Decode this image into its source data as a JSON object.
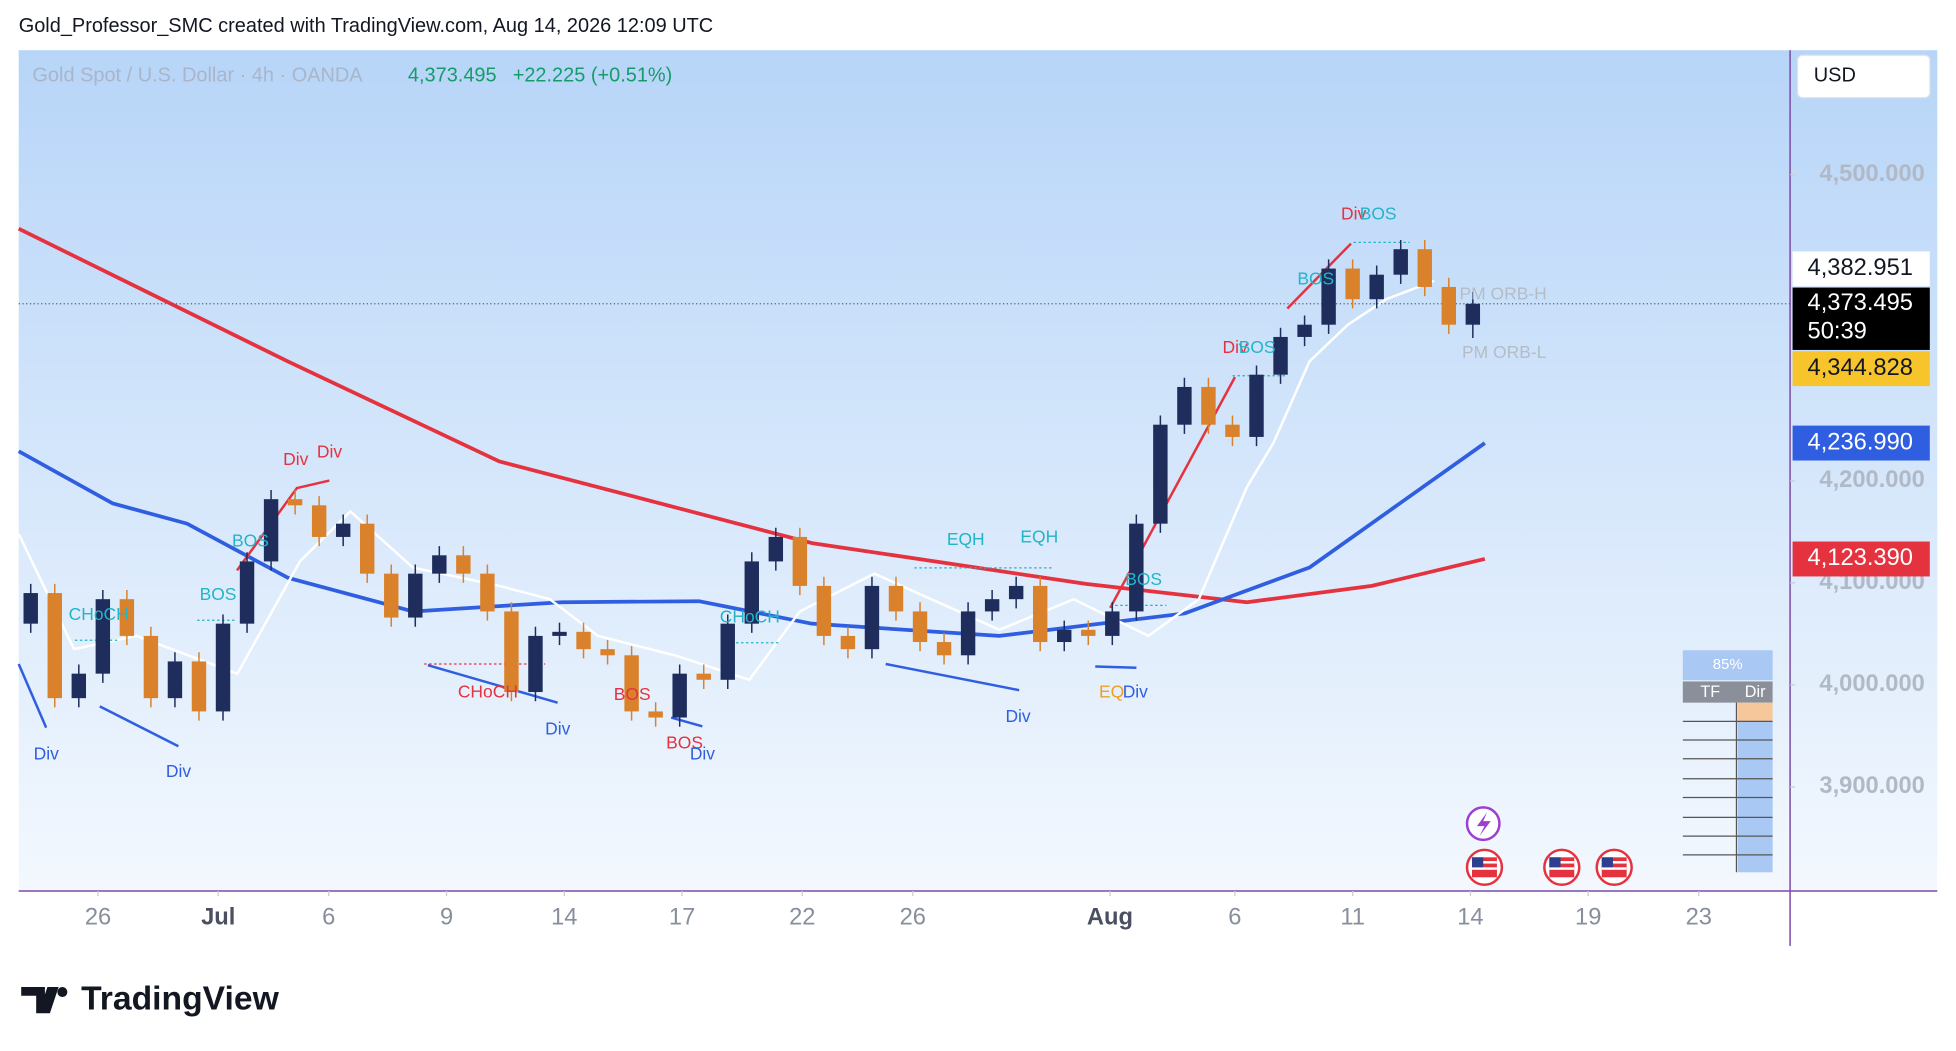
{
  "header": {
    "attribution": "Gold_Professor_SMC created with TradingView.com, Aug 14, 2026 12:09 UTC",
    "logo": "TradingView"
  },
  "chart_data": {
    "type": "candlestick",
    "title": "Gold Spot / U.S. Dollar · 4h · OANDA",
    "last_price": "4,373.495",
    "change": "+22.225 (+0.51%)",
    "currency": "USD",
    "up_color": "#1f2d5c",
    "down_color": "#d9822b",
    "open": [
      4060,
      4090,
      3987,
      4011,
      4084,
      4048,
      3987,
      4023,
      3974,
      4060,
      4121,
      4182,
      4176,
      4145,
      4158,
      4109,
      4066,
      4109,
      4127,
      4109,
      4072,
      3993,
      4048,
      4052,
      4035,
      4029,
      3974,
      3968,
      4011,
      4005,
      4060,
      4121,
      4145,
      4097,
      4048,
      4035,
      4097,
      4072,
      4042,
      4029,
      4072,
      4084,
      4097,
      4042,
      4054,
      4048,
      4072,
      4158,
      4255,
      4292,
      4255,
      4243,
      4304,
      4341,
      4353,
      4408,
      4378,
      4402,
      4427,
      4390,
      4353
    ],
    "high": [
      4099,
      4099,
      4020,
      4093,
      4093,
      4057,
      4032,
      4032,
      4069,
      4130,
      4191,
      4191,
      4185,
      4167,
      4167,
      4118,
      4118,
      4136,
      4136,
      4118,
      4081,
      4057,
      4061,
      4061,
      4044,
      4038,
      3983,
      4020,
      4020,
      4069,
      4130,
      4154,
      4154,
      4106,
      4057,
      4106,
      4106,
      4081,
      4051,
      4081,
      4093,
      4106,
      4106,
      4063,
      4063,
      4081,
      4167,
      4264,
      4301,
      4301,
      4264,
      4313,
      4350,
      4362,
      4417,
      4417,
      4411,
      4436,
      4436,
      4399,
      4385
    ],
    "low": [
      4051,
      3978,
      3978,
      4002,
      4039,
      3978,
      3978,
      3965,
      3965,
      4051,
      4112,
      4167,
      4136,
      4136,
      4100,
      4057,
      4057,
      4100,
      4100,
      4063,
      3984,
      3984,
      4039,
      4026,
      4020,
      3965,
      3959,
      3959,
      3996,
      3996,
      4051,
      4112,
      4088,
      4039,
      4026,
      4026,
      4063,
      4033,
      4020,
      4020,
      4063,
      4075,
      4033,
      4033,
      4039,
      4039,
      4063,
      4149,
      4246,
      4246,
      4234,
      4234,
      4295,
      4332,
      4344,
      4369,
      4369,
      4393,
      4381,
      4344,
      4340
    ],
    "close": [
      4090,
      3987,
      4011,
      4084,
      4048,
      3987,
      4023,
      3974,
      4060,
      4121,
      4182,
      4176,
      4145,
      4158,
      4109,
      4066,
      4109,
      4127,
      4109,
      4072,
      3993,
      4048,
      4052,
      4035,
      4029,
      3974,
      3968,
      4011,
      4005,
      4060,
      4121,
      4145,
      4097,
      4048,
      4035,
      4097,
      4072,
      4042,
      4029,
      4072,
      4084,
      4097,
      4042,
      4054,
      4048,
      4072,
      4158,
      4255,
      4292,
      4255,
      4243,
      4304,
      4341,
      4353,
      4408,
      4378,
      4402,
      4427,
      4390,
      4353,
      4373.495
    ],
    "overlays": [
      {
        "color": "#e5323f",
        "x": [
          -0.5,
          10.7,
          19.5,
          32.5,
          43.9,
          50.6,
          55.8,
          60.5
        ],
        "values": [
          4447,
          4317,
          4219,
          4139,
          4099,
          4081,
          4097,
          4123.39
        ]
      },
      {
        "color": "#2f5fe0",
        "x": [
          -0.5,
          3.4,
          6.5,
          10.7,
          15.9,
          22.1,
          27.8,
          32.5,
          40.3,
          48.0,
          53.2,
          60.5
        ],
        "values": [
          4229,
          4178,
          4158,
          4105,
          4072,
          4081,
          4082,
          4060,
          4048,
          4070,
          4115,
          4236.99
        ]
      },
      {
        "color": "#ffffff",
        "x": [
          -0.5,
          1.8,
          4.4,
          8.6,
          11.2,
          13.3,
          15.9,
          19.5,
          21.6,
          23.6,
          26.8,
          29.9,
          32.0,
          35.1,
          40.3,
          43.4,
          46.5,
          48.6,
          50.6,
          51.7,
          53.2,
          54.8,
          56.4,
          58.4
        ],
        "values": [
          4148,
          4035,
          4048,
          4011,
          4121,
          4170,
          4115,
          4097,
          4084,
          4048,
          4029,
          4005,
          4072,
          4109,
          4054,
          4084,
          4048,
          4084,
          4194,
          4237,
          4317,
          4353,
          4378,
          4396
        ]
      }
    ],
    "xlim": [
      -0.5,
      73.2
    ],
    "xticks": [
      {
        "value": 2.8,
        "label": "26"
      },
      {
        "value": 7.8,
        "label": "Jul"
      },
      {
        "value": 12.4,
        "label": "6"
      },
      {
        "value": 17.3,
        "label": "9"
      },
      {
        "value": 22.2,
        "label": "14"
      },
      {
        "value": 27.1,
        "label": "17"
      },
      {
        "value": 32.1,
        "label": "22"
      },
      {
        "value": 36.7,
        "label": "26"
      },
      {
        "value": 44.9,
        "label": "Aug"
      },
      {
        "value": 50.1,
        "label": "6"
      },
      {
        "value": 55.0,
        "label": "11"
      },
      {
        "value": 59.9,
        "label": "14"
      },
      {
        "value": 64.8,
        "label": "19"
      },
      {
        "value": 69.4,
        "label": "23"
      }
    ],
    "ylim": [
      3798,
      4622
    ],
    "yticks": [
      {
        "value": 3900,
        "label": "3,900.000"
      },
      {
        "value": 4000,
        "label": "4,000.000"
      },
      {
        "value": 4100,
        "label": "4,100.000"
      },
      {
        "value": 4200,
        "label": "4,200.000"
      },
      {
        "value": 4500,
        "label": "4,500.000"
      }
    ],
    "price_labels": [
      {
        "value": 4382.951,
        "label": "4,382.951",
        "color": "#ffffff",
        "text_color": "#131722"
      },
      {
        "value": 4373.495,
        "label": "4,373.495",
        "countdown": "50:39",
        "color": "#000000",
        "text_color": "#ffffff"
      },
      {
        "value": 4344.828,
        "label": "4,344.828",
        "color": "#f7c52b",
        "text_color": "#131722"
      },
      {
        "value": 4236.99,
        "label": "4,236.990",
        "color": "#2f5fe0",
        "text_color": "#ffffff"
      },
      {
        "value": 4123.39,
        "label": "4,123.390",
        "color": "#e5323f",
        "text_color": "#ffffff"
      }
    ],
    "annotations": [
      "CHoCH",
      "Div",
      "BOS",
      "Div",
      "Div",
      "Div",
      "BOS",
      "CHoCH",
      "Div",
      "BOS",
      "BOS",
      "Div",
      "CHoCH",
      "EQH",
      "EQH",
      "Div",
      "BOS",
      "EQ",
      "Div",
      "Div",
      "BOS",
      "BOS",
      "Div",
      "BOS",
      "PM ORB-H",
      "PM ORB-L"
    ],
    "table": {
      "title": "85%",
      "headers": [
        "TF",
        "Dir"
      ]
    }
  }
}
